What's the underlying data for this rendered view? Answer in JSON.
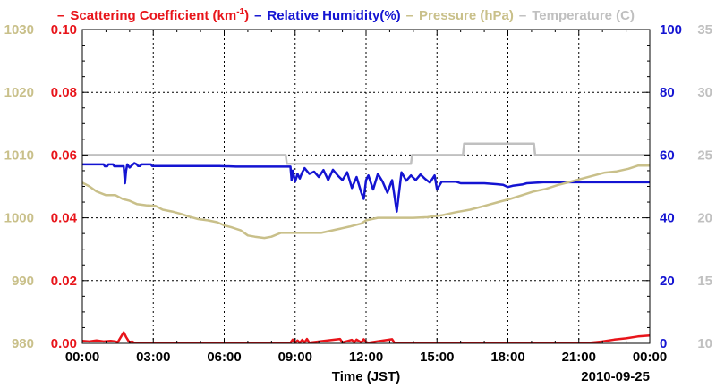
{
  "chart_data": {
    "type": "line",
    "title": "",
    "legend": [
      {
        "key": "scattering",
        "dash": "–",
        "label": "Scattering Coefficient (km",
        "sup": "-1",
        "suffix": ")",
        "color": "#e8141a"
      },
      {
        "key": "humidity",
        "dash": "–",
        "label": "Relative Humidity(%)",
        "color": "#1414d2"
      },
      {
        "key": "pressure",
        "dash": "–",
        "label": "Pressure (hPa)",
        "color": "#c9c08a"
      },
      {
        "key": "temperature",
        "dash": "–",
        "label": "Temperature (C)",
        "color": "#c0c0c0"
      }
    ],
    "xlabel": "Time (JST)",
    "date_label": "2010-09-25",
    "x_range": [
      0,
      24
    ],
    "x_ticks": [
      {
        "value": 0,
        "label": "00:00"
      },
      {
        "value": 3,
        "label": "03:00"
      },
      {
        "value": 6,
        "label": "06:00"
      },
      {
        "value": 9,
        "label": "09:00"
      },
      {
        "value": 12,
        "label": "12:00"
      },
      {
        "value": 15,
        "label": "15:00"
      },
      {
        "value": 18,
        "label": "18:00"
      },
      {
        "value": 21,
        "label": "21:00"
      },
      {
        "value": 24,
        "label": "00:00"
      }
    ],
    "axes": {
      "pressure": {
        "range": [
          980,
          1030
        ],
        "ticks": [
          "980",
          "990",
          "1000",
          "1010",
          "1020",
          "1030"
        ],
        "color": "#c9c08a"
      },
      "scattering": {
        "range": [
          0,
          0.1
        ],
        "ticks": [
          "0.00",
          "0.02",
          "0.04",
          "0.06",
          "0.08",
          "0.10"
        ],
        "color": "#e8141a"
      },
      "humidity": {
        "range": [
          0,
          100
        ],
        "ticks": [
          "0",
          "20",
          "40",
          "60",
          "80",
          "100"
        ],
        "color": "#1414d2"
      },
      "temperature": {
        "range": [
          10,
          35
        ],
        "ticks": [
          "10",
          "15",
          "20",
          "25",
          "30",
          "35"
        ],
        "color": "#c0c0c0"
      }
    },
    "series": [
      {
        "name": "Temperature",
        "axis": "temperature",
        "color": "#c0c0c0",
        "x": [
          0,
          8.6,
          8.65,
          13.9,
          13.95,
          16.1,
          16.15,
          19.1,
          19.15,
          24
        ],
        "values": [
          25.0,
          25.0,
          24.3,
          24.3,
          25.0,
          25.0,
          25.9,
          25.9,
          25.0,
          25.0
        ]
      },
      {
        "name": "Relative Humidity",
        "axis": "humidity",
        "color": "#1414d2",
        "x": [
          0,
          0.9,
          0.95,
          1.05,
          1.1,
          1.3,
          1.35,
          1.75,
          1.8,
          1.85,
          1.9,
          2.0,
          2.2,
          2.3,
          2.35,
          2.45,
          2.5,
          2.9,
          2.95,
          4.5,
          5.8,
          6.5,
          7.0,
          8.8,
          8.85,
          8.9,
          9.0,
          9.1,
          9.2,
          9.3,
          9.4,
          9.6,
          9.8,
          10.0,
          10.2,
          10.4,
          10.6,
          10.8,
          11.0,
          11.2,
          11.4,
          11.6,
          11.8,
          11.9,
          12.0,
          12.1,
          12.3,
          12.5,
          12.7,
          12.9,
          13.1,
          13.3,
          13.5,
          13.7,
          13.9,
          14.1,
          14.3,
          14.5,
          14.7,
          14.9,
          15.0,
          15.2,
          15.4,
          15.6,
          15.8,
          16.0,
          16.5,
          17.0,
          17.5,
          17.8,
          18.0,
          18.2,
          18.6,
          18.8,
          19.5,
          20.5,
          24
        ],
        "values": [
          57.0,
          57.0,
          56.4,
          56.4,
          57.0,
          57.0,
          56.4,
          56.4,
          51.0,
          55.0,
          57.0,
          56.0,
          57.4,
          57.0,
          56.5,
          56.5,
          57.0,
          57.0,
          56.5,
          56.5,
          56.5,
          56.3,
          56.3,
          56.3,
          52.0,
          55.0,
          51.5,
          54.0,
          52.5,
          54.5,
          55.8,
          54.0,
          54.7,
          53.0,
          55.2,
          52.0,
          55.3,
          53.5,
          52.0,
          54.5,
          49.5,
          53.0,
          48.0,
          46.0,
          52.0,
          53.5,
          49.0,
          54.0,
          51.5,
          48.0,
          52.0,
          42.0,
          54.5,
          51.8,
          53.5,
          52.0,
          53.8,
          52.4,
          51.2,
          53.5,
          49.0,
          51.5,
          51.5,
          51.5,
          51.5,
          51.0,
          51.0,
          51.0,
          50.7,
          50.5,
          49.8,
          50.2,
          50.6,
          51.0,
          51.3,
          51.3,
          51.3
        ]
      },
      {
        "name": "Pressure",
        "axis": "pressure",
        "color": "#c9c08a",
        "x": [
          0,
          0.3,
          0.6,
          1.0,
          1.4,
          1.7,
          2.0,
          2.3,
          2.7,
          3.1,
          3.4,
          3.8,
          4.2,
          4.5,
          4.9,
          5.3,
          5.7,
          6.0,
          6.3,
          6.7,
          7.0,
          7.3,
          7.7,
          8.0,
          8.4,
          8.7,
          9.0,
          9.5,
          10.1,
          10.7,
          11.3,
          11.8,
          12.0,
          12.5,
          13.0,
          13.5,
          14.0,
          14.6,
          15.2,
          15.8,
          16.4,
          17.0,
          17.6,
          18.1,
          18.6,
          19.1,
          19.6,
          20.1,
          20.6,
          21.1,
          21.6,
          22.1,
          22.6,
          23.1,
          23.5,
          24
        ],
        "values": [
          1005.6,
          1005.0,
          1004.2,
          1003.6,
          1003.6,
          1003.0,
          1002.7,
          1002.2,
          1002.0,
          1001.9,
          1001.3,
          1001.0,
          1000.6,
          1000.2,
          999.8,
          999.6,
          999.3,
          998.8,
          998.5,
          998.0,
          997.2,
          997.0,
          996.8,
          997.0,
          997.6,
          997.6,
          997.6,
          997.6,
          997.6,
          998.1,
          998.6,
          999.1,
          999.6,
          1000.0,
          1000.0,
          1000.0,
          1000.0,
          1000.1,
          1000.4,
          1000.9,
          1001.3,
          1001.9,
          1002.5,
          1003.0,
          1003.6,
          1004.2,
          1004.6,
          1005.2,
          1005.7,
          1006.2,
          1006.7,
          1007.2,
          1007.4,
          1007.8,
          1008.3,
          1008.3
        ]
      },
      {
        "name": "Scattering Coefficient",
        "axis": "scattering",
        "color": "#e8141a",
        "x": [
          0,
          0.3,
          0.6,
          0.9,
          1.2,
          1.4,
          1.5,
          1.75,
          1.85,
          1.95,
          2.0,
          2.1,
          2.2,
          8.8,
          8.9,
          9.0,
          9.1,
          9.2,
          9.3,
          9.4,
          9.5,
          9.6,
          9.7,
          10.9,
          11.0,
          11.4,
          11.5,
          11.6,
          11.8,
          11.9,
          12.0,
          12.1,
          13.1,
          13.2,
          21.5,
          22.0,
          22.5,
          23.0,
          23.5,
          24
        ],
        "values": [
          0.0008,
          0.0006,
          0.0009,
          0.0006,
          0.0008,
          0.0006,
          0.0004,
          0.0035,
          0.002,
          0.0008,
          0.0004,
          0.0006,
          0.0002,
          0.0002,
          0.0012,
          0.0002,
          0.0009,
          0.0002,
          0.0011,
          0.0003,
          0.0014,
          0.0002,
          0.0003,
          0.0014,
          0.0003,
          0.0011,
          0.0003,
          0.0012,
          0.0003,
          0.0013,
          0.0004,
          0.0002,
          0.0013,
          0.0002,
          0.0002,
          0.0006,
          0.0012,
          0.0016,
          0.0022,
          0.0025
        ]
      }
    ]
  }
}
